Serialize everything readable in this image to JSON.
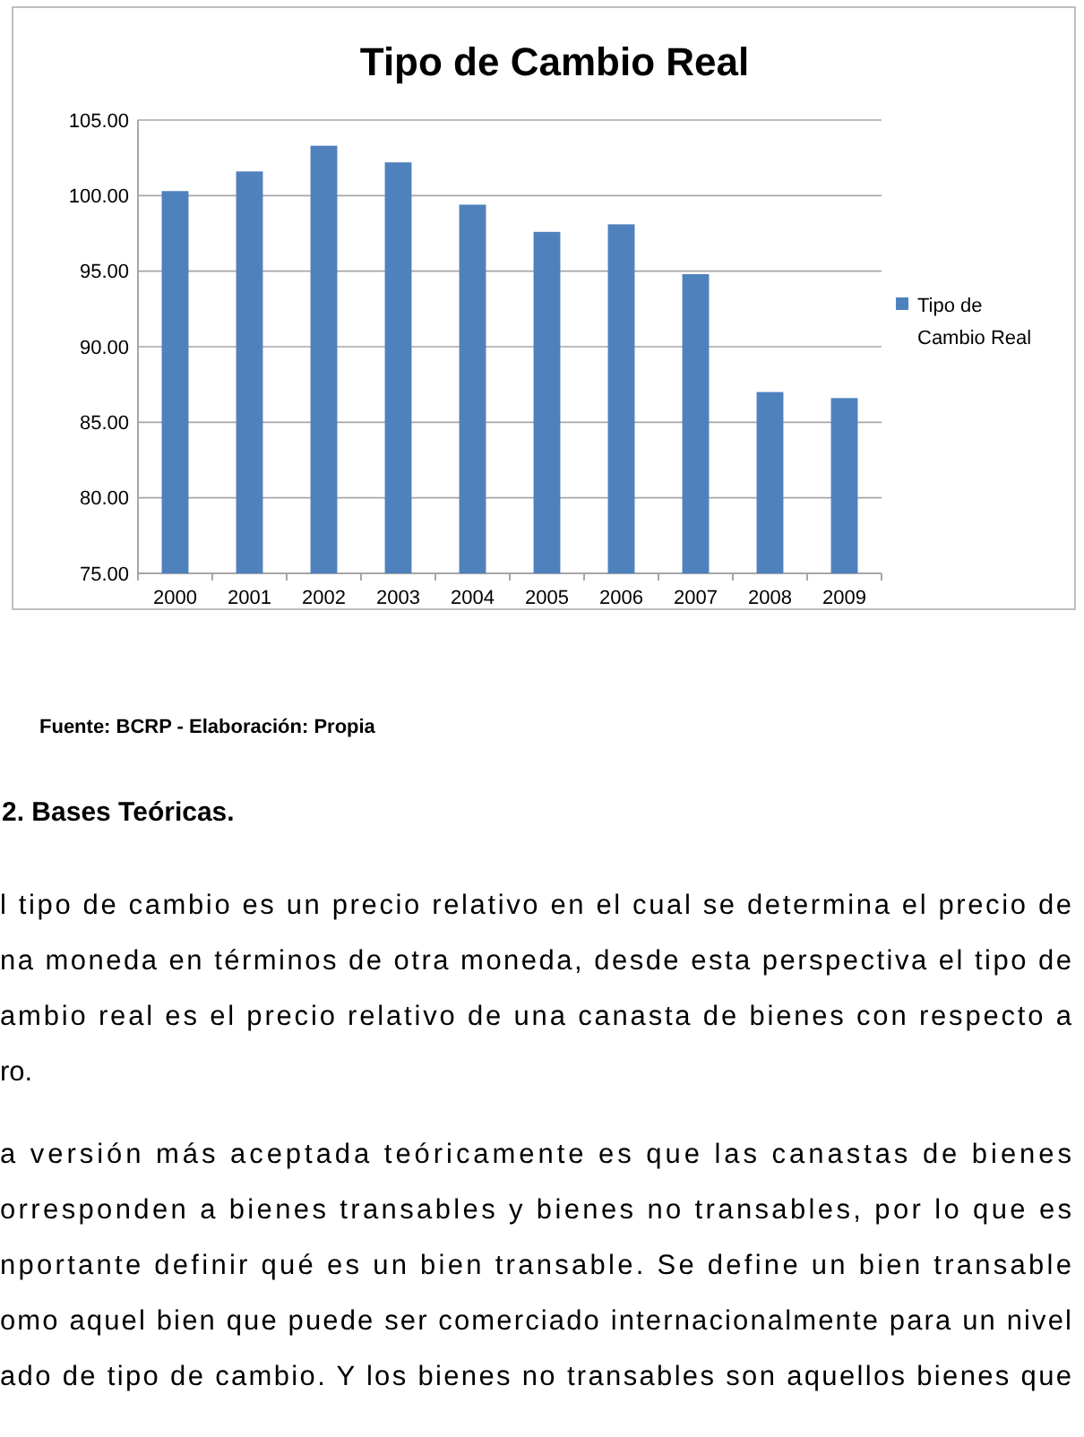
{
  "chart_data": {
    "type": "bar",
    "title": "Tipo de Cambio Real",
    "categories": [
      "2000",
      "2001",
      "2002",
      "2003",
      "2004",
      "2005",
      "2006",
      "2007",
      "2008",
      "2009"
    ],
    "series": [
      {
        "name": "Tipo de Cambio Real",
        "color": "#4f81bd",
        "values": [
          100.3,
          101.6,
          103.3,
          102.2,
          99.4,
          97.6,
          98.1,
          94.8,
          87.0,
          86.6
        ]
      }
    ],
    "ylim": [
      75,
      105
    ],
    "yticks": [
      {
        "value": 75,
        "label": "75.00"
      },
      {
        "value": 80,
        "label": "80.00"
      },
      {
        "value": 85,
        "label": "85.00"
      },
      {
        "value": 90,
        "label": "90.00"
      },
      {
        "value": 95,
        "label": "95.00"
      },
      {
        "value": 100,
        "label": "100.00"
      },
      {
        "value": 105,
        "label": "105.00"
      }
    ],
    "grid": "y",
    "legend": "right",
    "annotations": [
      "Fuente: BCRP - Elaboración: Propia",
      "2. Bases Teóricas.",
      "l tipo de cambio es un precio relativo en el cual se determina el precio de",
      "na moneda en términos de otra moneda, desde esta perspectiva el tipo de",
      "ambio real es el precio relativo de una canasta de bienes con respecto  a",
      "ro.",
      "a versión más aceptada teóricamente es que las canastas de bienes",
      "orresponden a bienes transables y bienes no transables, por lo que es",
      "nportante definir qué es un bien transable. Se  define un  bien  transable",
      "omo aquel bien que puede ser comerciado internacionalmente para un nivel",
      "ado de tipo de cambio. Y los bienes no transables son aquellos bienes que"
    ]
  }
}
